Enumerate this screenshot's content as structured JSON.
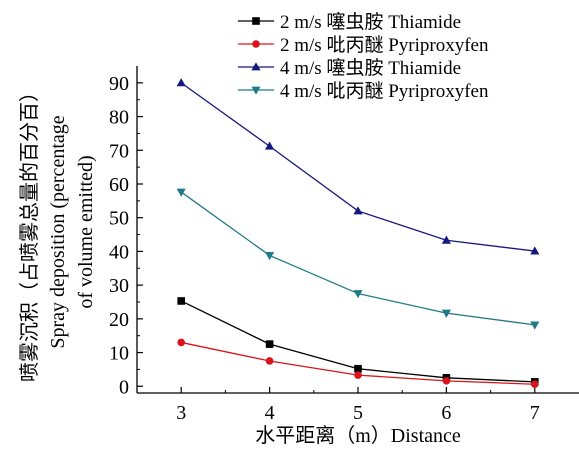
{
  "chart_data": {
    "type": "line",
    "x": [
      3,
      4,
      5,
      6,
      7
    ],
    "xlim": [
      2.5,
      7.5
    ],
    "ylim": [
      -2,
      95
    ],
    "xticks": [
      3,
      4,
      5,
      6,
      7
    ],
    "yticks": [
      0,
      10,
      20,
      30,
      40,
      50,
      60,
      70,
      80,
      90
    ],
    "xlabel": "水平距离（m）Distance",
    "ylabel": "喷雾沉积（占喷雾总量的百分百）Spray deposition (percentage of volume emitted)",
    "ylabel_lines": [
      "喷雾沉积（占喷雾总量的百分百）",
      "Spray deposition (percentage",
      "of volume emitted)"
    ],
    "grid": false,
    "legend_position": "top-right",
    "series": [
      {
        "name": "2 m/s 噻虫胺 Thiamide",
        "color": "#000000",
        "marker": "square",
        "values": [
          25.3,
          12.5,
          5.2,
          2.5,
          1.3
        ]
      },
      {
        "name": "2 m/s 吡丙醚 Pyriproxyfen",
        "color": "#d9141b",
        "marker": "circle",
        "values": [
          13.0,
          7.5,
          3.3,
          1.6,
          0.6
        ]
      },
      {
        "name": "4 m/s 噻虫胺 Thiamide",
        "color": "#17187d",
        "marker": "triangle-up",
        "values": [
          90.0,
          71.2,
          52.0,
          43.3,
          40.1
        ]
      },
      {
        "name": "4 m/s 吡丙醚 Pyriproxyfen",
        "color": "#207a8a",
        "marker": "triangle-down",
        "values": [
          57.6,
          38.8,
          27.5,
          21.7,
          18.2
        ]
      }
    ]
  }
}
